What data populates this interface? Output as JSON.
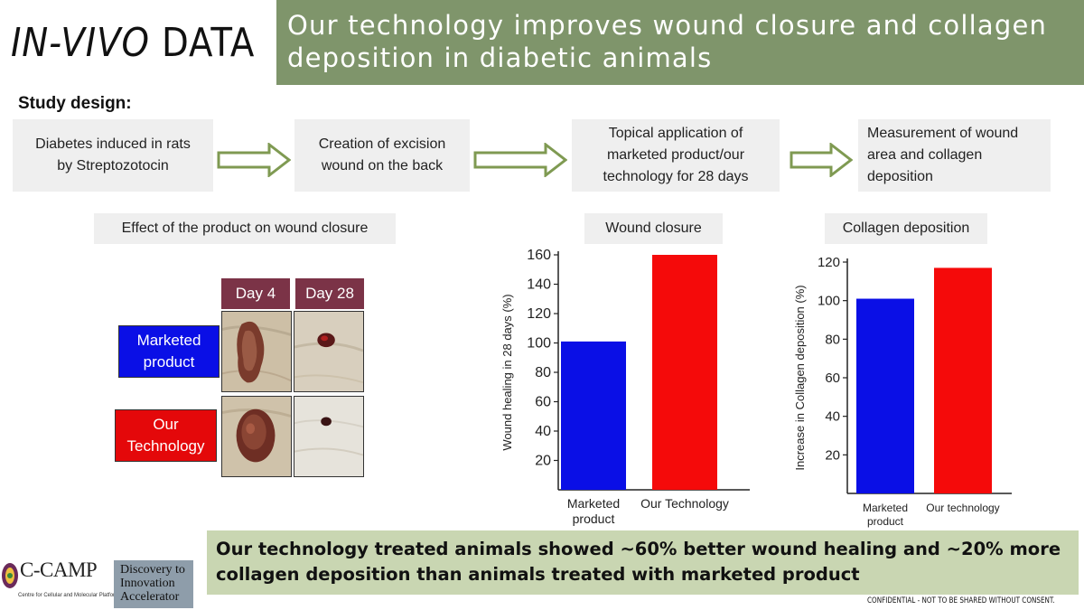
{
  "header": {
    "title_italic": "IN-VIVO",
    "title_rest": "DATA",
    "banner": "Our technology improves wound closure and collagen deposition in diabetic animals"
  },
  "study": {
    "heading": "Study design:",
    "steps": [
      [
        "Diabetes induced in rats",
        "by Streptozotocin"
      ],
      [
        "Creation of excision",
        "wound on the back"
      ],
      [
        "Topical application of",
        "marketed product/our",
        "technology for 28 days"
      ],
      [
        "Measurement of wound",
        "area and collagen",
        "deposition"
      ]
    ]
  },
  "effect": {
    "label": "Effect of the product on wound closure",
    "day_headers": [
      "Day 4",
      "Day 28"
    ],
    "groups": [
      [
        "Marketed",
        "product"
      ],
      [
        "Our",
        "Technology"
      ]
    ]
  },
  "labels": {
    "wound_closure": "Wound closure",
    "collagen_deposition": "Collagen deposition"
  },
  "colors": {
    "marketed": "#0a0fe6",
    "ours": "#f50a0a",
    "banner": "#7f956b",
    "conclusion": "#c9d6b2",
    "day_header": "#7b3347"
  },
  "chart_data": [
    {
      "type": "bar",
      "title": "",
      "categories": [
        [
          "Marketed",
          "product"
        ],
        [
          "Our Technology"
        ]
      ],
      "values": [
        101,
        160
      ],
      "ylabel": "Wound healing in 28 days (%)",
      "yticks": [
        20,
        40,
        60,
        80,
        100,
        120,
        140,
        160
      ],
      "ylim": [
        0,
        160
      ],
      "bar_colors": [
        "#0a0fe6",
        "#f50a0a"
      ]
    },
    {
      "type": "bar",
      "title": "",
      "categories": [
        [
          "Marketed",
          "product"
        ],
        [
          "Our technology"
        ]
      ],
      "values": [
        101,
        117
      ],
      "ylabel": "Increase in Collagen deposition (%)",
      "yticks": [
        20,
        40,
        60,
        80,
        100,
        120
      ],
      "ylim": [
        0,
        120
      ],
      "bar_colors": [
        "#0a0fe6",
        "#f50a0a"
      ]
    }
  ],
  "conclusion": "Our technology treated animals showed ~60% better wound healing and ~20% more collagen deposition than animals treated with marketed product",
  "footer": {
    "ccamp": "C-CAMP",
    "ccamp_sub": "Centre for Cellular and Molecular Platforms",
    "dia_lines": [
      "Discovery to",
      "Innovation",
      "Accelerator"
    ],
    "confidential": "CONFIDENTIAL - NOT TO BE SHARED WITHOUT CONSENT."
  }
}
